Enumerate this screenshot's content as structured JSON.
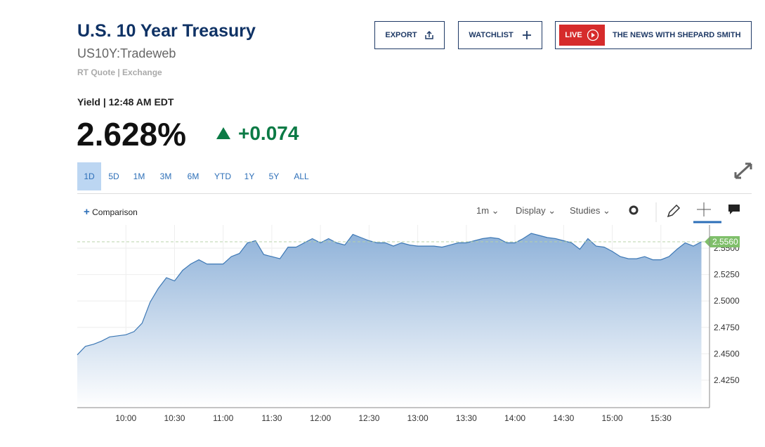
{
  "header": {
    "title": "U.S. 10 Year Treasury",
    "symbol": "US10Y:Tradeweb",
    "source": "RT Quote | Exchange"
  },
  "buttons": {
    "export": "EXPORT",
    "watchlist": "WATCHLIST",
    "live": "LIVE",
    "show": "THE NEWS WITH SHEPARD SMITH"
  },
  "quote": {
    "label": "Yield | 12:48 AM EDT",
    "price": "2.628%",
    "change": "+0.074"
  },
  "ranges": [
    "1D",
    "5D",
    "1M",
    "3M",
    "6M",
    "YTD",
    "1Y",
    "5Y",
    "ALL"
  ],
  "toolbar": {
    "comparison": "Comparison",
    "interval": "1m",
    "display": "Display",
    "studies": "Studies"
  },
  "chart_data": {
    "type": "area",
    "color": "#3d78b5",
    "current_label": "2.5560",
    "x": [
      570,
      575,
      580,
      585,
      590,
      595,
      600,
      605,
      610,
      615,
      620,
      625,
      630,
      635,
      640,
      645,
      650,
      655,
      660,
      665,
      670,
      675,
      680,
      685,
      690,
      695,
      700,
      705,
      710,
      715,
      720,
      725,
      730,
      735,
      740,
      745,
      750,
      755,
      760,
      765,
      770,
      775,
      780,
      785,
      790,
      795,
      800,
      805,
      810,
      815,
      820,
      825,
      830,
      835,
      840,
      845,
      850,
      855,
      860,
      865,
      870,
      875,
      880,
      885,
      890,
      895,
      900,
      905,
      910,
      915,
      920,
      925,
      930,
      935,
      940,
      945,
      950,
      955
    ],
    "values": [
      2.449,
      2.457,
      2.459,
      2.462,
      2.466,
      2.467,
      2.468,
      2.471,
      2.479,
      2.499,
      2.512,
      2.522,
      2.519,
      2.529,
      2.535,
      2.539,
      2.535,
      2.535,
      2.535,
      2.542,
      2.545,
      2.555,
      2.557,
      2.544,
      2.542,
      2.54,
      2.551,
      2.551,
      2.555,
      2.559,
      2.555,
      2.559,
      2.555,
      2.553,
      2.563,
      2.56,
      2.557,
      2.555,
      2.555,
      2.552,
      2.555,
      2.553,
      2.552,
      2.552,
      2.552,
      2.551,
      2.553,
      2.555,
      2.555,
      2.557,
      2.559,
      2.56,
      2.559,
      2.555,
      2.555,
      2.559,
      2.564,
      2.562,
      2.56,
      2.559,
      2.557,
      2.555,
      2.549,
      2.559,
      2.552,
      2.551,
      2.547,
      2.542,
      2.54,
      2.54,
      2.542,
      2.539,
      2.539,
      2.542,
      2.549,
      2.555,
      2.552,
      2.556
    ],
    "xlim": [
      570,
      960
    ],
    "xticks": [
      {
        "value": 600,
        "label": "10:00"
      },
      {
        "value": 630,
        "label": "10:30"
      },
      {
        "value": 660,
        "label": "11:00"
      },
      {
        "value": 690,
        "label": "11:30"
      },
      {
        "value": 720,
        "label": "12:00"
      },
      {
        "value": 750,
        "label": "12:30"
      },
      {
        "value": 780,
        "label": "13:00"
      },
      {
        "value": 810,
        "label": "13:30"
      },
      {
        "value": 840,
        "label": "14:00"
      },
      {
        "value": 870,
        "label": "14:30"
      },
      {
        "value": 900,
        "label": "15:00"
      },
      {
        "value": 930,
        "label": "15:30"
      }
    ],
    "ylim": [
      2.399,
      2.572
    ],
    "yticks": [
      {
        "value": 2.425,
        "label": "2.4250"
      },
      {
        "value": 2.45,
        "label": "2.4500"
      },
      {
        "value": 2.475,
        "label": "2.4750"
      },
      {
        "value": 2.5,
        "label": "2.5000"
      },
      {
        "value": 2.525,
        "label": "2.5250"
      },
      {
        "value": 2.55,
        "label": "2.5500"
      }
    ],
    "grid": true
  }
}
